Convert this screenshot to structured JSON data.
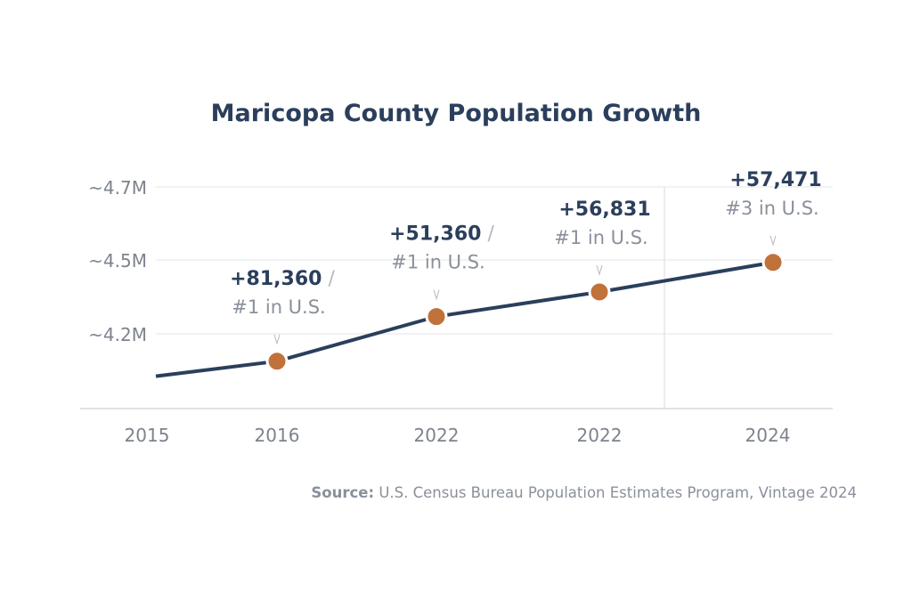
{
  "chart_data": {
    "type": "line",
    "title": "Maricopa County Population Growth",
    "categories": [
      "2015",
      "2016",
      "2022",
      "2022",
      "2024"
    ],
    "values": [
      4.03,
      4.09,
      4.27,
      4.37,
      4.49
    ],
    "unit": "M",
    "y_ticks": [
      {
        "value": 4.2,
        "label": "~4.2M"
      },
      {
        "value": 4.5,
        "label": "~4.5M"
      },
      {
        "value": 4.7,
        "label": "~4.7M"
      }
    ],
    "ylim": [
      3.9,
      4.7
    ],
    "grid": true,
    "markers_on": [
      1,
      2,
      3,
      4
    ],
    "annotations": [
      {
        "index": 1,
        "change": "+81,360",
        "sep": "/",
        "rank": "#1 in U.S."
      },
      {
        "index": 2,
        "change": "+51,360",
        "sep": "/",
        "rank": "#1 in U.S."
      },
      {
        "index": 3,
        "change": "+56,831",
        "sep": "",
        "rank": "#1 in U.S."
      },
      {
        "index": 4,
        "change": "+57,471",
        "sep": "",
        "rank": "#3 in U.S."
      }
    ],
    "reference_line_between": [
      "2022",
      "2024"
    ],
    "colors": {
      "line": "#2b3f5c",
      "marker": "#c0723a",
      "grid": "#e3e5e8",
      "axis_text": "#7d838d",
      "rank_text": "#8a909a"
    }
  },
  "source": {
    "label": "Source:",
    "text": " U.S. Census Bureau Population Estimates Program, Vintage 2024"
  }
}
